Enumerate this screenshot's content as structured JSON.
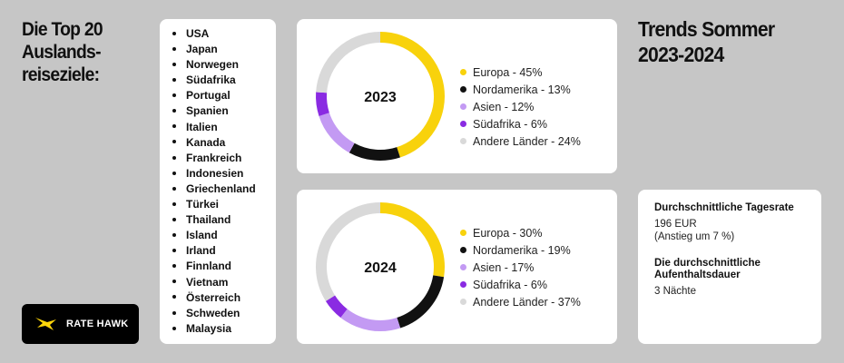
{
  "left_title": [
    "Die Top 20",
    "Auslands-",
    "reiseziele:"
  ],
  "right_title": [
    "Trends Sommer",
    "2023-2024"
  ],
  "destinations": [
    "USA",
    "Japan",
    "Norwegen",
    "Südafrika",
    "Portugal",
    "Spanien",
    "Italien",
    "Kanada",
    "Frankreich",
    "Indonesien",
    "Griechenland",
    "Türkei",
    "Thailand",
    "Island",
    "Irland",
    "Finnland",
    "Vietnam",
    "Österreich",
    "Schweden",
    "Malaysia"
  ],
  "stats": {
    "daily_rate_label": "Durchschnittliche Tagesrate",
    "daily_rate_value": "196 EUR",
    "daily_rate_change": "(Anstieg um 7 %)",
    "stay_label": "Die durchschnittliche Aufenthaltsdauer",
    "stay_value": "3 Nächte"
  },
  "logo": {
    "text": "RATE HAWK",
    "color": "#ffd60a"
  },
  "chart_data": [
    {
      "type": "pie",
      "title": "2023",
      "categories": [
        "Europa",
        "Nordamerika",
        "Asien",
        "Südafrika",
        "Andere Länder"
      ],
      "values": [
        45,
        13,
        12,
        6,
        24
      ],
      "legend": [
        "Europa - 45%",
        "Nordamerika - 13%",
        "Asien - 12%",
        "Südafrika - 6%",
        "Andere Länder - 24%"
      ],
      "colors": [
        "#f8d20c",
        "#111111",
        "#c39af3",
        "#8a2be2",
        "#d9d9d9"
      ],
      "legend_position": "right"
    },
    {
      "type": "pie",
      "title": "2024",
      "categories": [
        "Europa",
        "Nordamerika",
        "Asien",
        "Südafrika",
        "Andere Länder"
      ],
      "values": [
        30,
        19,
        17,
        6,
        37
      ],
      "legend": [
        "Europa - 30%",
        "Nordamerika - 19%",
        "Asien - 17%",
        "Südafrika - 6%",
        "Andere Länder - 37%"
      ],
      "colors": [
        "#f8d20c",
        "#111111",
        "#c39af3",
        "#8a2be2",
        "#d9d9d9"
      ],
      "legend_position": "right"
    }
  ]
}
